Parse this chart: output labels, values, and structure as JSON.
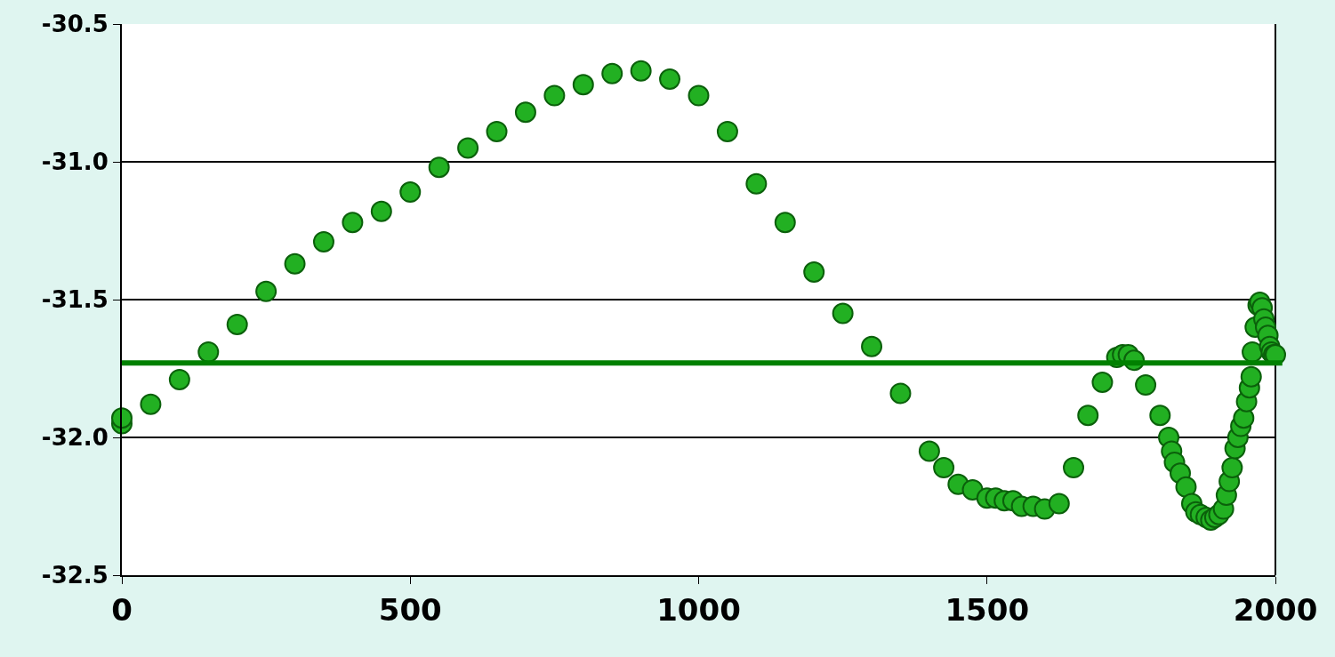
{
  "chart_data": {
    "type": "scatter",
    "marker": "circle",
    "grid": "y",
    "xlim": [
      0,
      2000
    ],
    "xticks": [
      0,
      500,
      1000,
      1500,
      2000
    ],
    "ylim": [
      -32.5,
      -30.5
    ],
    "yticks": [
      {
        "value": -32.5,
        "label": "-32.5"
      },
      {
        "value": -32.0,
        "label": "-32.0"
      },
      {
        "value": -31.5,
        "label": "-31.5"
      },
      {
        "value": -31.0,
        "label": "-31.0"
      },
      {
        "value": -30.5,
        "label": "-30.5"
      }
    ],
    "ref_lines": [
      {
        "axis": "y",
        "value": -31.73,
        "color": "#008000"
      }
    ],
    "series": [
      {
        "color": "#22b022",
        "x": [
          0,
          0,
          50,
          100,
          150,
          200,
          250,
          300,
          350,
          400,
          450,
          500,
          550,
          600,
          650,
          700,
          750,
          800,
          850,
          900,
          950,
          1000,
          1050,
          1100,
          1150,
          1200,
          1250,
          1300,
          1350,
          1400,
          1425,
          1450,
          1475,
          1500,
          1515,
          1530,
          1545,
          1560,
          1580,
          1600,
          1625,
          1650,
          1675,
          1700,
          1725,
          1735,
          1745,
          1755,
          1775,
          1800,
          1815,
          1820,
          1825,
          1835,
          1845,
          1855,
          1862,
          1870,
          1880,
          1888,
          1895,
          1902,
          1910,
          1915,
          1920,
          1925,
          1930,
          1935,
          1940,
          1945,
          1950,
          1955,
          1958,
          1960,
          1965,
          1970,
          1973,
          1977,
          1980,
          1983,
          1987,
          1990,
          1993,
          1997,
          2000
        ],
        "values": [
          -31.95,
          -31.93,
          -31.88,
          -31.79,
          -31.69,
          -31.59,
          -31.47,
          -31.37,
          -31.29,
          -31.22,
          -31.18,
          -31.11,
          -31.02,
          -30.95,
          -30.89,
          -30.82,
          -30.76,
          -30.72,
          -30.68,
          -30.67,
          -30.7,
          -30.76,
          -30.89,
          -31.08,
          -31.22,
          -31.4,
          -31.55,
          -31.67,
          -31.84,
          -32.05,
          -32.11,
          -32.17,
          -32.19,
          -32.22,
          -32.22,
          -32.23,
          -32.23,
          -32.25,
          -32.25,
          -32.26,
          -32.24,
          -32.11,
          -31.92,
          -31.8,
          -31.71,
          -31.7,
          -31.7,
          -31.72,
          -31.81,
          -31.92,
          -32.0,
          -32.05,
          -32.09,
          -32.13,
          -32.18,
          -32.24,
          -32.27,
          -32.28,
          -32.29,
          -32.3,
          -32.29,
          -32.28,
          -32.26,
          -32.21,
          -32.16,
          -32.11,
          -32.04,
          -32.0,
          -31.96,
          -31.93,
          -31.87,
          -31.82,
          -31.78,
          -31.69,
          -31.6,
          -31.52,
          -31.51,
          -31.53,
          -31.57,
          -31.6,
          -31.63,
          -31.67,
          -31.69,
          -31.7,
          -31.7
        ]
      }
    ]
  }
}
